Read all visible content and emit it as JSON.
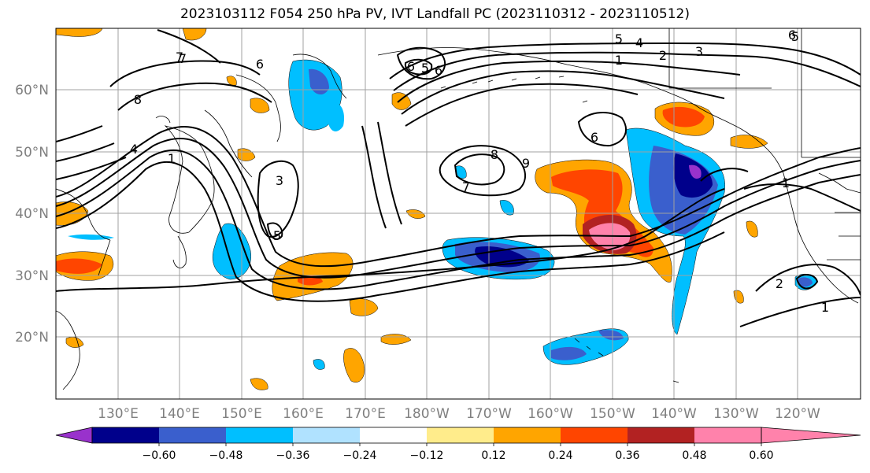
{
  "title": "2023103112 F054 250 hPa PV, IVT Landfall PC (2023110312 - 2023110512)",
  "lat_labels": [
    "20°N",
    "30°N",
    "40°N",
    "50°N",
    "60°N"
  ],
  "lon_labels": [
    "130°E",
    "140°E",
    "150°E",
    "160°E",
    "170°E",
    "180°W",
    "170°W",
    "160°W",
    "150°W",
    "140°W",
    "130°W",
    "120°W"
  ],
  "colorbar": {
    "tick_labels": [
      "−0.60",
      "−0.48",
      "−0.36",
      "−0.24",
      "−0.12",
      "0.12",
      "0.24",
      "0.36",
      "0.48",
      "0.60"
    ],
    "colors": [
      "#9932cc",
      "#00008b",
      "#3a5fcd",
      "#00bfff",
      "#b0e2ff",
      "#ffffff",
      "#ffec8b",
      "#ffa500",
      "#ff4500",
      "#b22222",
      "#ff82ab",
      "#ff82ab"
    ]
  },
  "contour_labels": [
    "7",
    "8",
    "6",
    "4",
    "1",
    "5",
    "3",
    "6",
    "5",
    "8",
    "7",
    "9",
    "6",
    "5",
    "4",
    "1",
    "2",
    "3",
    "6",
    "6",
    "5",
    "7",
    "2",
    "1",
    "1"
  ]
}
